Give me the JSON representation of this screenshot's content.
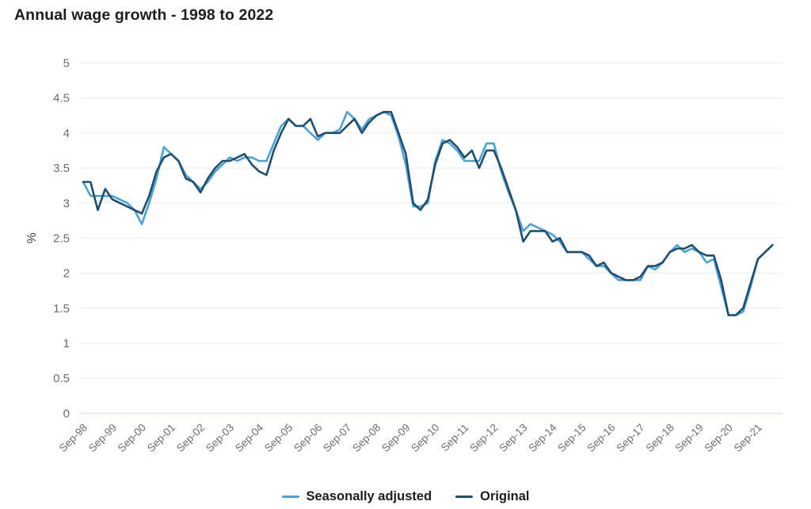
{
  "title": "Annual wage growth - 1998 to 2022",
  "colors": {
    "seasonally_adjusted": "#4CA2D7",
    "original": "#1F4E6E",
    "grid_line": "#ECECF1",
    "zero_line": "#D7D7E9",
    "tick_text": "#6D6D72",
    "axis_label_text": "#47474B",
    "title_text": "#1D1D1F"
  },
  "chart_data": {
    "type": "line",
    "title": "Annual wage growth - 1998 to 2022",
    "xlabel": "",
    "ylabel": "%",
    "ylim": [
      0,
      5
    ],
    "y_ticks": [
      0,
      0.5,
      1,
      1.5,
      2,
      2.5,
      3,
      3.5,
      4,
      4.5,
      5
    ],
    "grid": true,
    "legend_position": "bottom",
    "x_unit": "quarter",
    "x_first_point": "Sep-1998",
    "x_last_point": "Mar-2022",
    "x_tick_every": 4,
    "x_tick_labels": [
      "Sep-98",
      "Sep-99",
      "Sep-00",
      "Sep-01",
      "Sep-02",
      "Sep-03",
      "Sep-04",
      "Sep-05",
      "Sep-06",
      "Sep-07",
      "Sep-08",
      "Sep-09",
      "Sep-10",
      "Sep-11",
      "Sep-12",
      "Sep-13",
      "Sep-14",
      "Sep-15",
      "Sep-16",
      "Sep-17",
      "Sep-18",
      "Sep-19",
      "Sep-20",
      "Sep-21"
    ],
    "series": [
      {
        "name": "Seasonally adjusted",
        "color": "#4CA2D7",
        "values": [
          3.3,
          3.1,
          3.1,
          3.1,
          3.1,
          3.05,
          3.0,
          2.9,
          2.7,
          3.0,
          3.35,
          3.8,
          3.7,
          3.6,
          3.4,
          3.3,
          3.2,
          3.3,
          3.45,
          3.55,
          3.65,
          3.6,
          3.65,
          3.65,
          3.6,
          3.6,
          3.85,
          4.1,
          4.2,
          4.1,
          4.1,
          4.0,
          3.9,
          4.0,
          4.0,
          4.05,
          4.3,
          4.2,
          4.05,
          4.2,
          4.25,
          4.3,
          4.25,
          3.95,
          3.55,
          2.95,
          2.95,
          3.0,
          3.6,
          3.9,
          3.85,
          3.75,
          3.6,
          3.6,
          3.6,
          3.85,
          3.85,
          3.45,
          3.15,
          2.9,
          2.6,
          2.7,
          2.65,
          2.6,
          2.55,
          2.45,
          2.3,
          2.3,
          2.3,
          2.2,
          2.1,
          2.1,
          2.0,
          1.9,
          1.9,
          1.9,
          1.9,
          2.1,
          2.05,
          2.15,
          2.3,
          2.4,
          2.3,
          2.35,
          2.3,
          2.15,
          2.2,
          1.8,
          1.4,
          1.4,
          1.45,
          1.8,
          2.2,
          2.3,
          2.4
        ]
      },
      {
        "name": "Original",
        "color": "#1F4E6E",
        "values": [
          3.3,
          3.3,
          2.9,
          3.2,
          3.05,
          3.0,
          2.95,
          2.9,
          2.85,
          3.1,
          3.45,
          3.65,
          3.7,
          3.6,
          3.35,
          3.3,
          3.15,
          3.35,
          3.5,
          3.6,
          3.6,
          3.65,
          3.7,
          3.55,
          3.45,
          3.4,
          3.75,
          4.0,
          4.2,
          4.1,
          4.1,
          4.2,
          3.95,
          4.0,
          4.0,
          4.0,
          4.1,
          4.2,
          4.0,
          4.15,
          4.25,
          4.3,
          4.3,
          4.0,
          3.7,
          3.0,
          2.9,
          3.05,
          3.55,
          3.85,
          3.9,
          3.8,
          3.65,
          3.75,
          3.5,
          3.75,
          3.75,
          3.5,
          3.2,
          2.9,
          2.45,
          2.6,
          2.6,
          2.6,
          2.45,
          2.5,
          2.3,
          2.3,
          2.3,
          2.25,
          2.1,
          2.15,
          2.0,
          1.95,
          1.9,
          1.9,
          1.95,
          2.1,
          2.1,
          2.15,
          2.3,
          2.35,
          2.35,
          2.4,
          2.3,
          2.25,
          2.25,
          1.9,
          1.4,
          1.4,
          1.5,
          1.85,
          2.2,
          2.3,
          2.4
        ]
      }
    ]
  },
  "legend": {
    "items": [
      {
        "label": "Seasonally adjusted"
      },
      {
        "label": "Original"
      }
    ]
  }
}
